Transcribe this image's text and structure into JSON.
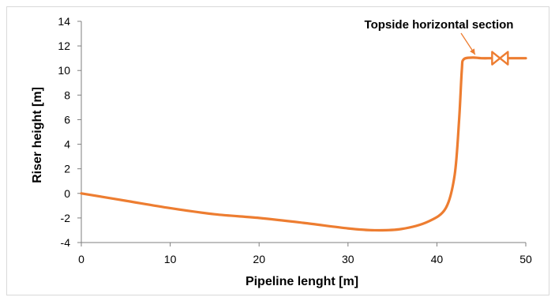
{
  "chart_data": {
    "type": "line",
    "title": "",
    "xlabel": "Pipeline lenght [m]",
    "ylabel": "Riser height [m]",
    "xlim": [
      0,
      50
    ],
    "ylim": [
      -4,
      14
    ],
    "x_ticks": [
      "0",
      "10",
      "20",
      "30",
      "40",
      "50"
    ],
    "y_ticks": [
      "-4",
      "-2",
      "0",
      "2",
      "4",
      "6",
      "8",
      "10",
      "12",
      "14"
    ],
    "grid": false,
    "legend": "none",
    "series": [
      {
        "color": "#ed7d31",
        "x": [
          0,
          5,
          10,
          15,
          20,
          25,
          30,
          33,
          36,
          39,
          41,
          42,
          42.5,
          42.8,
          43,
          44,
          45,
          46.5,
          50
        ],
        "y": [
          0,
          -0.6,
          -1.2,
          -1.7,
          -2.0,
          -2.4,
          -2.85,
          -3.0,
          -2.9,
          -2.3,
          -1.2,
          1.5,
          6.0,
          10.0,
          10.9,
          11.05,
          11.0,
          11.0,
          11.0
        ]
      }
    ],
    "annotations": [
      {
        "text": "Topside horizontal section",
        "target_x": 44.3,
        "target_y": 11.1
      }
    ],
    "valve_marker": {
      "x": 47.1,
      "y": 11.0,
      "color": "#ed7d31"
    }
  }
}
